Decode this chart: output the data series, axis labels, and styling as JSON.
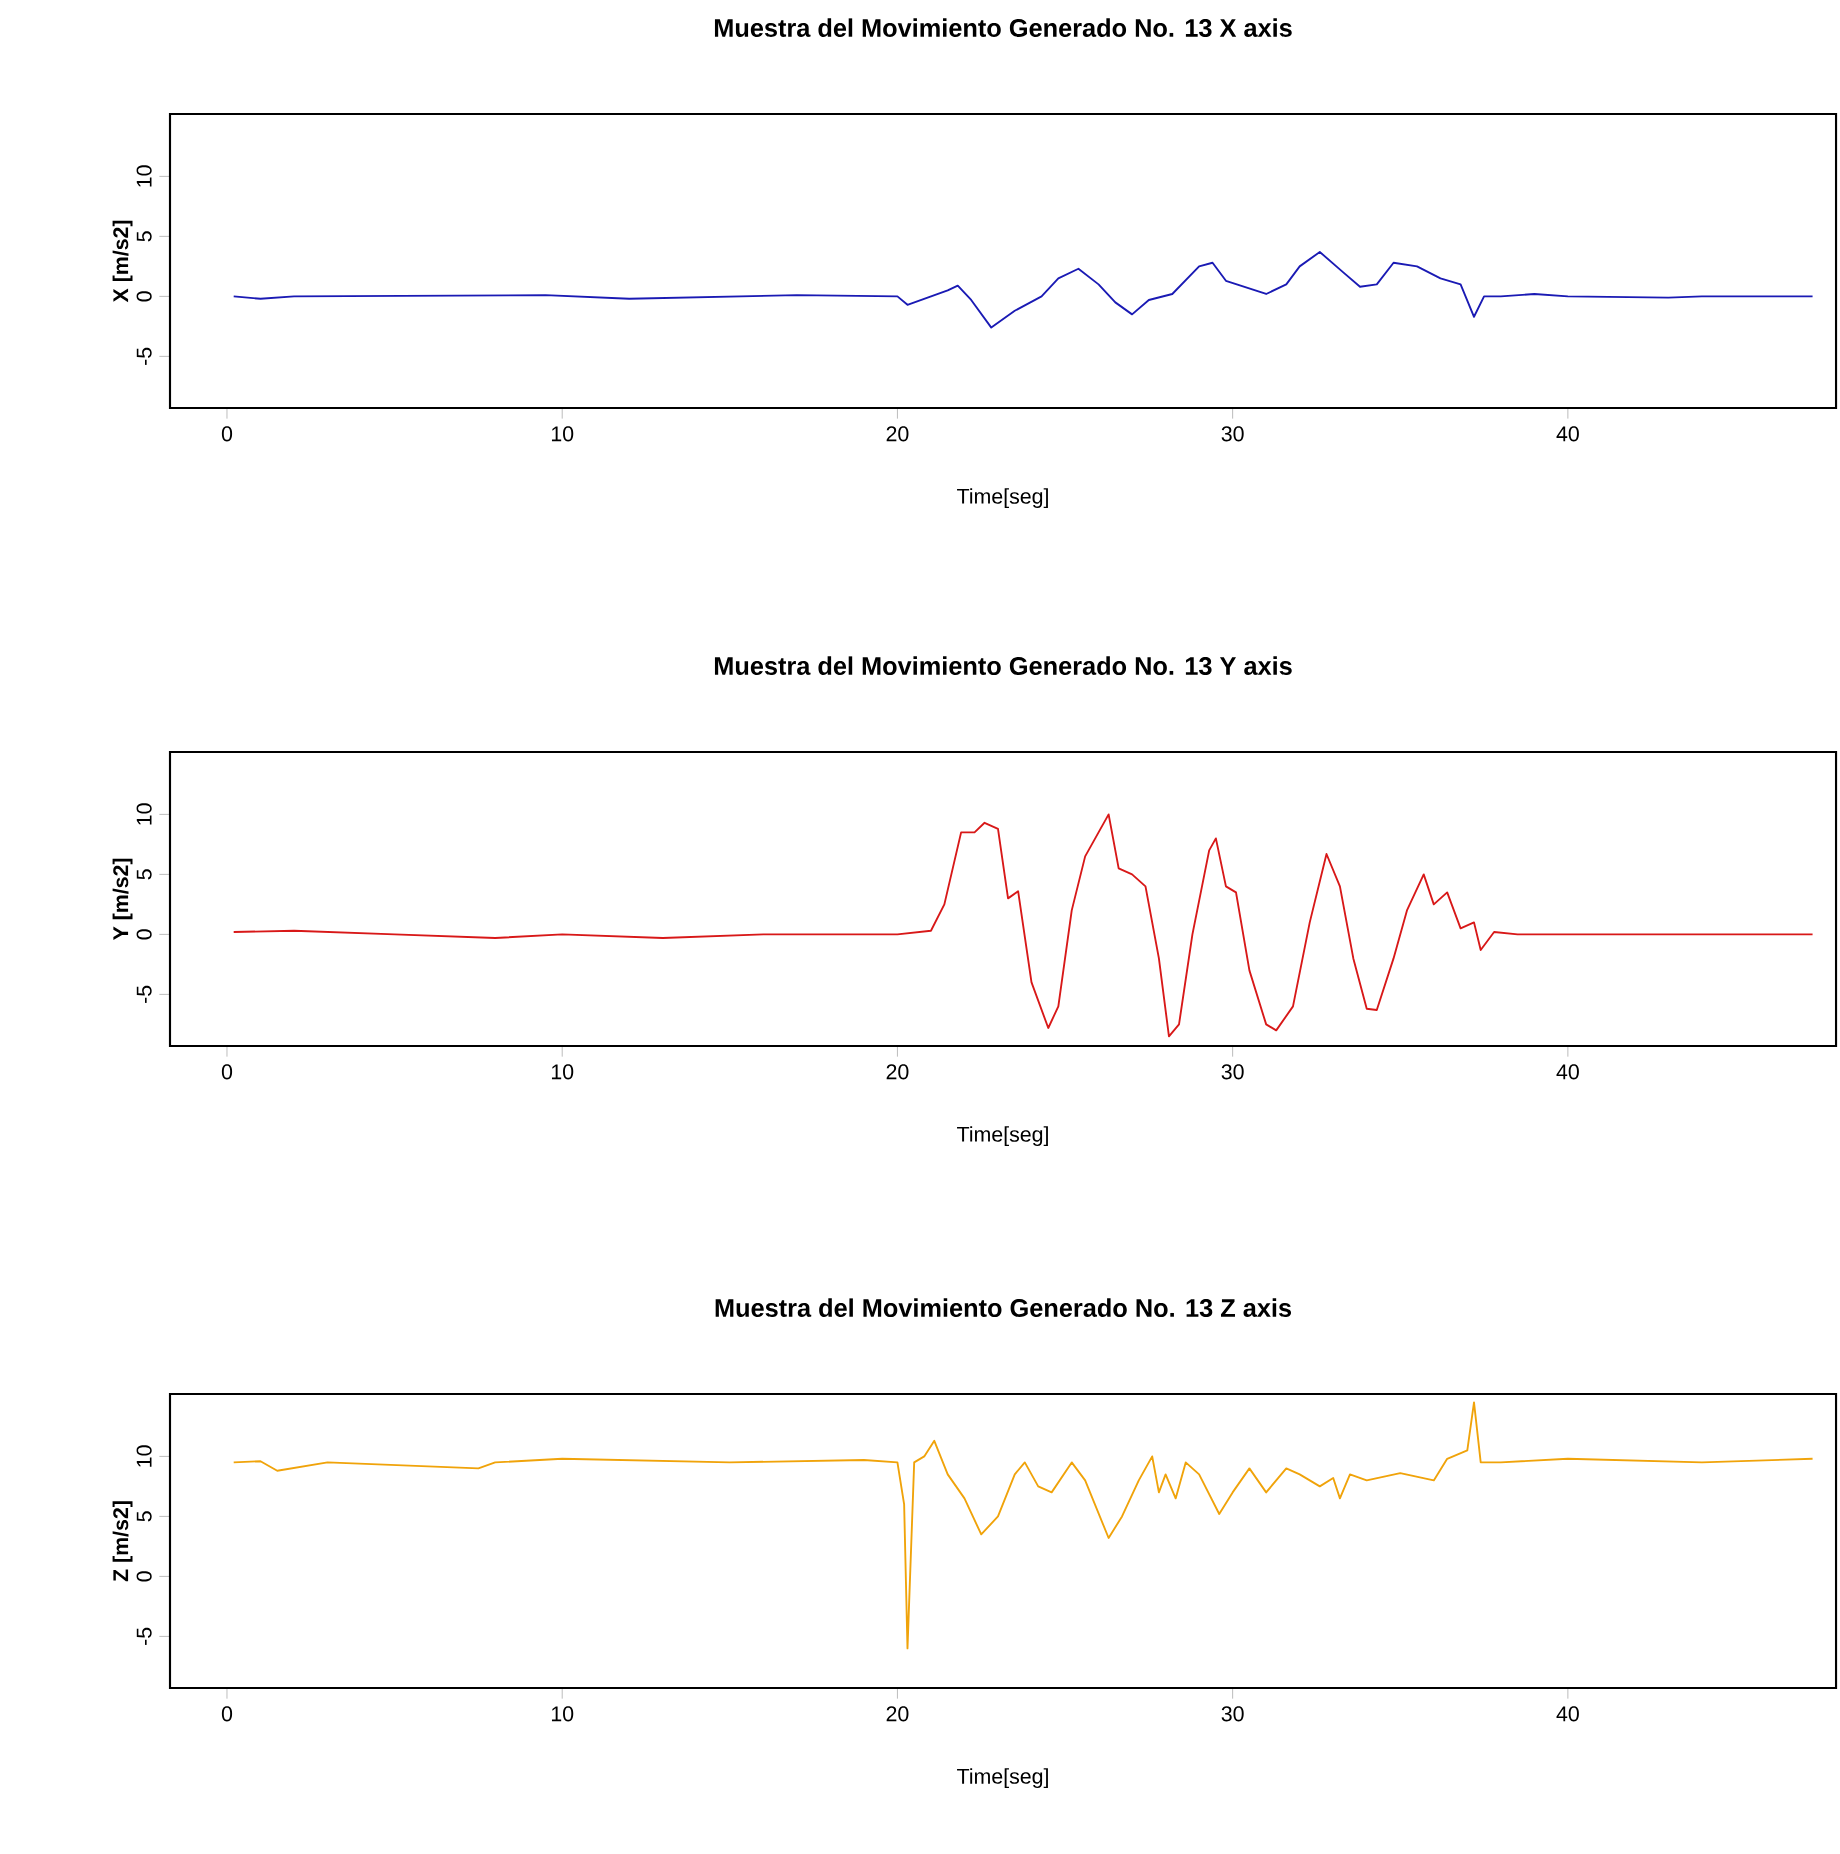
{
  "chart_data": [
    {
      "type": "line",
      "title": "Muestra del Movimiento Generado No.  13 X axis",
      "xlabel": "Time[seg]",
      "ylabel": "X [m/s2]",
      "xlim": [
        -1.7,
        48
      ],
      "ylim": [
        -9.3,
        15.2
      ],
      "xticks": [
        0,
        10,
        20,
        30,
        40
      ],
      "yticks": [
        -5,
        0,
        5,
        10
      ],
      "series": [
        {
          "color": "#1a1ab4",
          "x": [
            0.2,
            1,
            2,
            9.5,
            12,
            17,
            20,
            20.3,
            21.5,
            21.8,
            22.2,
            22.8,
            23.5,
            24.3,
            24.8,
            25.4,
            26,
            26.5,
            27,
            27.5,
            28.2,
            29,
            29.4,
            29.8,
            31,
            31.6,
            32,
            32.6,
            33.3,
            33.8,
            34.3,
            34.8,
            35.5,
            36.2,
            36.8,
            37.2,
            37.5,
            38,
            39,
            40,
            43,
            44,
            47.3
          ],
          "values": [
            0,
            -0.2,
            0,
            0.1,
            -0.2,
            0.1,
            0,
            -0.7,
            0.5,
            0.9,
            -0.3,
            -2.6,
            -1.2,
            0,
            1.5,
            2.3,
            1,
            -0.5,
            -1.5,
            -0.3,
            0.2,
            2.5,
            2.8,
            1.3,
            0.2,
            1,
            2.5,
            3.7,
            2,
            0.8,
            1,
            2.8,
            2.5,
            1.5,
            1,
            -1.7,
            0,
            0,
            0.2,
            0,
            -0.1,
            0,
            0
          ]
        }
      ]
    },
    {
      "type": "line",
      "title": "Muestra del Movimiento Generado No.  13 Y axis",
      "xlabel": "Time[seg]",
      "ylabel": "Y [m/s2]",
      "xlim": [
        -1.7,
        48
      ],
      "ylim": [
        -9.3,
        15.2
      ],
      "xticks": [
        0,
        10,
        20,
        30,
        40
      ],
      "yticks": [
        -5,
        0,
        5,
        10
      ],
      "series": [
        {
          "color": "#d81818",
          "x": [
            0.2,
            2,
            5,
            8,
            10,
            13,
            16,
            20,
            21,
            21.4,
            21.9,
            22.3,
            22.6,
            23,
            23.3,
            23.6,
            24,
            24.5,
            24.8,
            25.2,
            25.6,
            26,
            26.3,
            26.6,
            27,
            27.4,
            27.8,
            28.1,
            28.4,
            28.8,
            29.3,
            29.5,
            29.8,
            30.1,
            30.5,
            31,
            31.3,
            31.8,
            32.3,
            32.8,
            33.2,
            33.6,
            34,
            34.3,
            34.8,
            35.2,
            35.7,
            36,
            36.4,
            36.8,
            37.2,
            37.4,
            37.8,
            38.5,
            41,
            45,
            47.3
          ],
          "values": [
            0.2,
            0.3,
            0,
            -0.3,
            0,
            -0.3,
            0,
            0,
            0.3,
            2.5,
            8.5,
            8.5,
            9.3,
            8.8,
            3,
            3.6,
            -4,
            -7.8,
            -6,
            2,
            6.5,
            8.5,
            10,
            5.5,
            5,
            4,
            -2,
            -8.5,
            -7.5,
            0,
            7,
            8,
            4,
            3.5,
            -3,
            -7.5,
            -8,
            -6,
            1,
            6.7,
            4,
            -2,
            -6.2,
            -6.3,
            -2,
            2,
            5,
            2.5,
            3.5,
            0.5,
            1,
            -1.3,
            0.2,
            0,
            0,
            0,
            0
          ]
        }
      ]
    },
    {
      "type": "line",
      "title": "Muestra del Movimiento Generado No.  13 Z axis",
      "xlabel": "Time[seg]",
      "ylabel": "Z [m/s2]",
      "xlim": [
        -1.7,
        48
      ],
      "ylim": [
        -9.3,
        15.2
      ],
      "xticks": [
        0,
        10,
        20,
        30,
        40
      ],
      "yticks": [
        -5,
        0,
        5,
        10
      ],
      "series": [
        {
          "color": "#f0a30a",
          "x": [
            0.2,
            1,
            1.5,
            3,
            7.5,
            8,
            10,
            15,
            19,
            20,
            20.2,
            20.3,
            20.5,
            20.8,
            21.1,
            21.5,
            22,
            22.5,
            23,
            23.5,
            23.8,
            24.2,
            24.6,
            25.2,
            25.6,
            26.3,
            26.7,
            27.2,
            27.6,
            27.8,
            28,
            28.3,
            28.6,
            29,
            29.6,
            30,
            30.5,
            31,
            31.6,
            32,
            32.6,
            33,
            33.2,
            33.5,
            34,
            35,
            36,
            36.4,
            37,
            37.2,
            37.4,
            38,
            40,
            44,
            47.3
          ],
          "values": [
            9.5,
            9.6,
            8.8,
            9.5,
            9,
            9.5,
            9.8,
            9.5,
            9.7,
            9.5,
            6,
            -6,
            9.5,
            10,
            11.3,
            8.5,
            6.5,
            3.5,
            5,
            8.5,
            9.5,
            7.5,
            7,
            9.5,
            8,
            3.2,
            5,
            8,
            10,
            7,
            8.5,
            6.5,
            9.5,
            8.5,
            5.2,
            7,
            9,
            7,
            9,
            8.5,
            7.5,
            8.2,
            6.5,
            8.5,
            8,
            8.6,
            8,
            9.8,
            10.5,
            14.5,
            9.5,
            9.5,
            9.8,
            9.5,
            9.8
          ]
        }
      ]
    }
  ]
}
